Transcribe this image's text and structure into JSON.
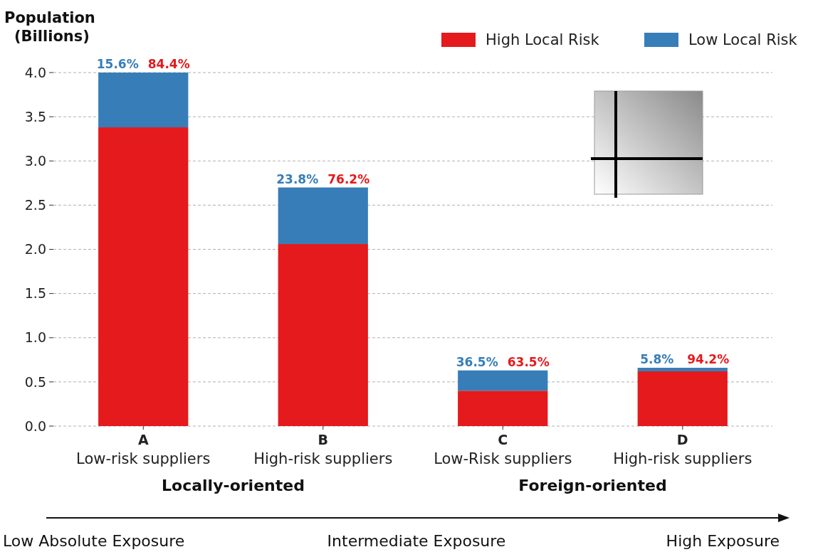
{
  "chart_data": {
    "type": "bar",
    "stacked": true,
    "ylabel": "Population\n(Billions)",
    "categories": [
      "A\nLow-risk suppliers",
      "B\nHigh-risk suppliers",
      "C\nLow-Risk suppliers",
      "D\nHigh-risk suppliers"
    ],
    "series": [
      {
        "name": "High Local Risk",
        "color": "#e41a1c",
        "values": [
          3.38,
          2.06,
          0.4,
          0.62
        ]
      },
      {
        "name": "Low Local Risk",
        "color": "#377eb8",
        "values": [
          0.62,
          0.64,
          0.23,
          0.04
        ]
      }
    ],
    "ylim": [
      0,
      4
    ],
    "yticks": [
      {
        "value": 0,
        "label": "0.0"
      },
      {
        "value": 0.5,
        "label": "0.5"
      },
      {
        "value": 1,
        "label": "1.0"
      },
      {
        "value": 1.5,
        "label": "1.5"
      },
      {
        "value": 2,
        "label": "2.0"
      },
      {
        "value": 2.5,
        "label": "2.5"
      },
      {
        "value": 3,
        "label": "3.0"
      },
      {
        "value": 3.5,
        "label": "3.5"
      },
      {
        "value": 4,
        "label": "4.0"
      }
    ],
    "grid": "y",
    "legend": "top right",
    "annotations": [
      "Locally-oriented",
      "Foreign-oriented",
      "Low Absolute Exposure",
      "Intermediate Exposure",
      "High Exposure",
      {
        "text": "15.6%",
        "x": "A\nLow-risk suppliers",
        "y": 4.0
      },
      {
        "text": "84.4%",
        "x": "A\nLow-risk suppliers",
        "y": 4.0
      },
      {
        "text": "23.8%",
        "x": "B\nHigh-risk suppliers",
        "y": 2.7
      },
      {
        "text": "76.2%",
        "x": "B\nHigh-risk suppliers",
        "y": 2.7
      },
      {
        "text": "36.5%",
        "x": "C\nLow-Risk suppliers",
        "y": 0.63
      },
      {
        "text": "63.5%",
        "x": "C\nLow-Risk suppliers",
        "y": 0.63
      },
      {
        "text": "5.8%",
        "x": "D\nHigh-risk suppliers",
        "y": 0.66
      },
      {
        "text": "94.2%",
        "x": "D\nHigh-risk suppliers",
        "y": 0.66
      }
    ]
  }
}
